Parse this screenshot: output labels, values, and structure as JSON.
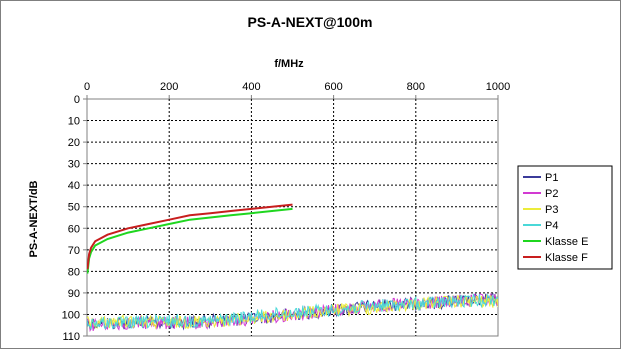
{
  "chart_data": {
    "type": "line",
    "title": "PS-A-NEXT@100m",
    "xlabel": "f/MHz",
    "ylabel": "PS-A-NEXT/dB",
    "xlim": [
      0,
      1000
    ],
    "ylim": [
      0,
      110
    ],
    "y_inverted": true,
    "x_axis_position": "top",
    "x_ticks": [
      "0",
      "200",
      "400",
      "600",
      "800",
      "1000"
    ],
    "y_ticks": [
      "0",
      "10",
      "20",
      "30",
      "40",
      "50",
      "60",
      "70",
      "80",
      "90",
      "100",
      "110"
    ],
    "grid": true,
    "legend_position": "right",
    "series": [
      {
        "name": "P1",
        "color": "#3b3b9a",
        "x": [
          0,
          100,
          200,
          300,
          400,
          500,
          600,
          700,
          800,
          900,
          1000
        ],
        "y": [
          104,
          104,
          104,
          103,
          102,
          100,
          98,
          96,
          95,
          94,
          93
        ]
      },
      {
        "name": "P2",
        "color": "#d23ad2",
        "x": [
          0,
          100,
          200,
          300,
          400,
          500,
          600,
          700,
          800,
          900,
          1000
        ],
        "y": [
          105,
          104,
          104,
          104,
          102,
          100,
          98,
          96,
          95,
          94,
          93
        ]
      },
      {
        "name": "P3",
        "color": "#ecec3a",
        "x": [
          0,
          100,
          200,
          300,
          400,
          500,
          600,
          700,
          800,
          900,
          1000
        ],
        "y": [
          104,
          103,
          104,
          103,
          102,
          100,
          98,
          97,
          95,
          94,
          94
        ]
      },
      {
        "name": "P4",
        "color": "#4ad8d8",
        "x": [
          0,
          100,
          200,
          300,
          400,
          500,
          600,
          700,
          800,
          900,
          1000
        ],
        "y": [
          104,
          104,
          103,
          103,
          101,
          99,
          98,
          96,
          95,
          94,
          93
        ]
      },
      {
        "name": "Klasse E",
        "color": "#1fd61f",
        "x": [
          1,
          5,
          10,
          20,
          50,
          100,
          150,
          200,
          250,
          300,
          350,
          400,
          450,
          500
        ],
        "y": [
          81,
          74,
          71,
          68,
          65,
          62,
          60,
          58,
          56,
          55,
          54,
          53,
          52,
          51
        ]
      },
      {
        "name": "Klasse F",
        "color": "#c81e1e",
        "x": [
          1,
          5,
          10,
          20,
          50,
          100,
          150,
          200,
          250,
          300,
          350,
          400,
          450,
          500
        ],
        "y": [
          79,
          72,
          69,
          66,
          63,
          60,
          58,
          56,
          54,
          53,
          52,
          51,
          50,
          49
        ]
      }
    ]
  }
}
